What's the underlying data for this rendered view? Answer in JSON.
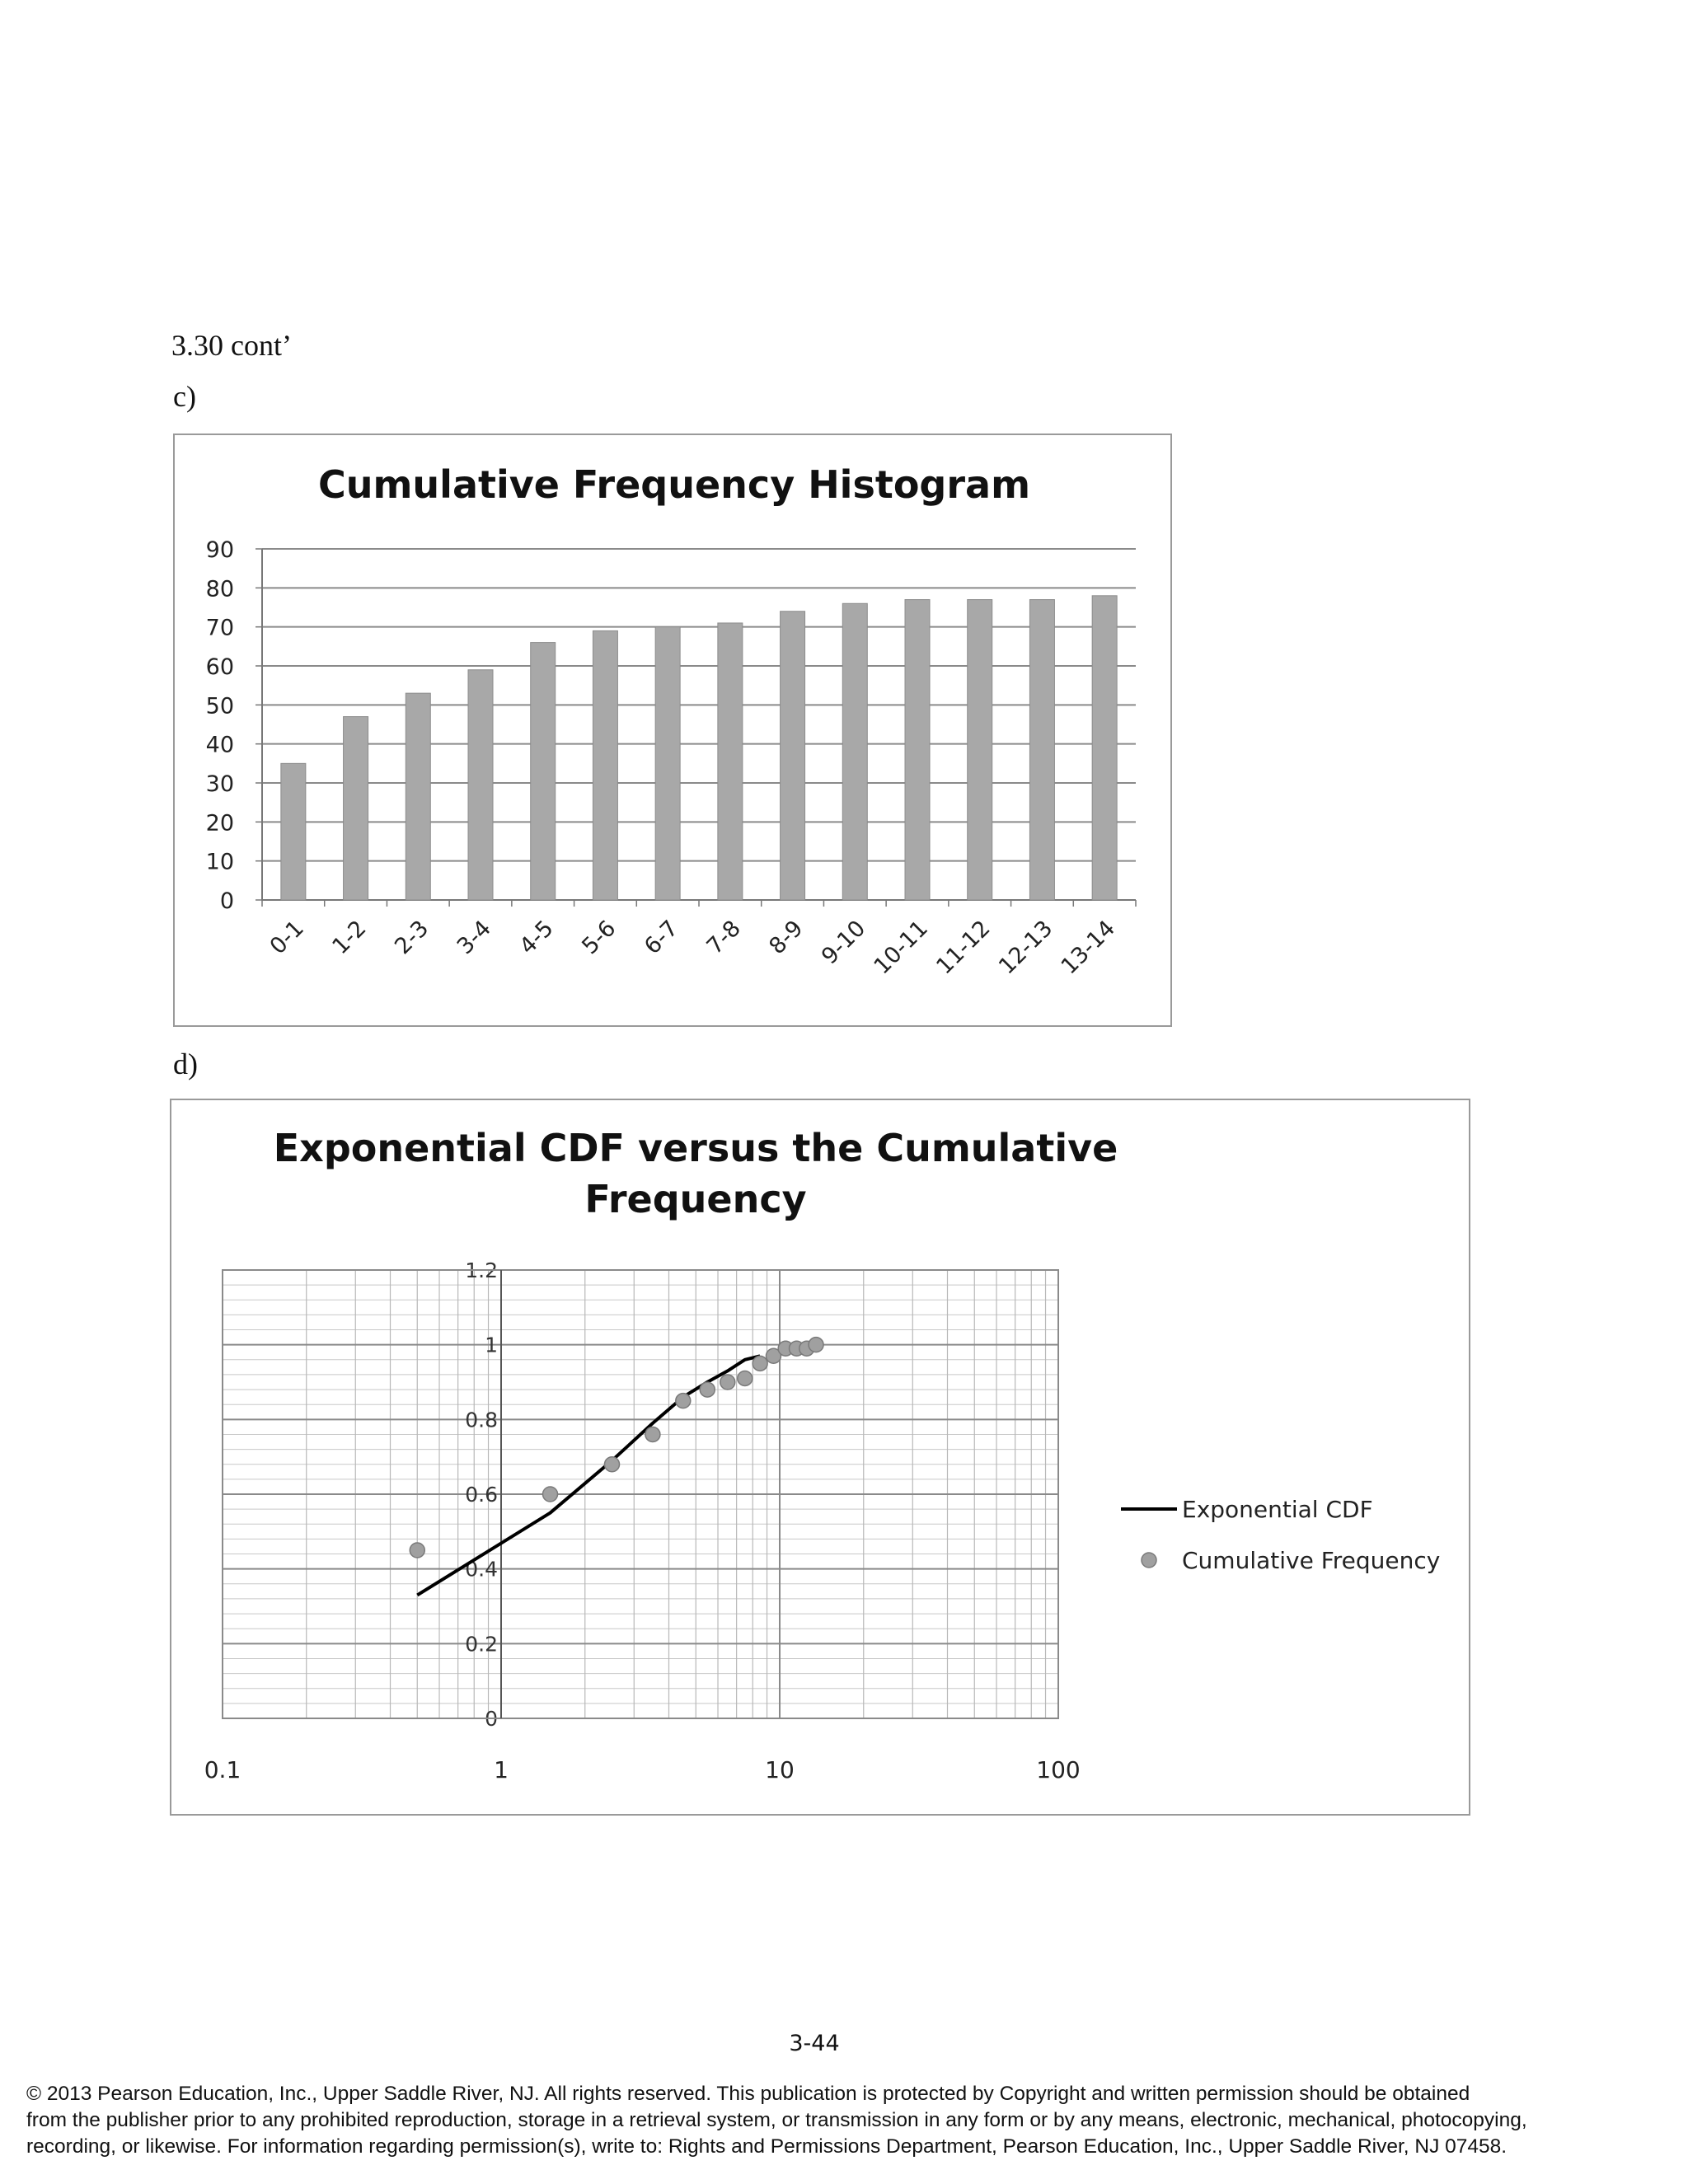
{
  "page": {
    "heading": "3.30 cont’",
    "part_c_label": "c)",
    "part_d_label": "d)",
    "page_number": "3-44",
    "copyright": [
      "© 2013 Pearson Education, Inc., Upper Saddle River, NJ. All rights reserved. This publication is protected by Copyright and written permission should be obtained",
      "from the publisher prior to any prohibited reproduction, storage in a retrieval system, or transmission in any form or by any means, electronic, mechanical, photocopying,",
      "recording, or likewise. For information regarding permission(s), write to: Rights and Permissions Department, Pearson Education, Inc., Upper Saddle River, NJ 07458."
    ]
  },
  "chart_data": [
    {
      "type": "bar",
      "title": "Cumulative Frequency Histogram",
      "categories": [
        "0-1",
        "1-2",
        "2-3",
        "3-4",
        "4-5",
        "5-6",
        "6-7",
        "7-8",
        "8-9",
        "9-10",
        "10-11",
        "11-12",
        "12-13",
        "13-14"
      ],
      "values": [
        35,
        47,
        53,
        59,
        66,
        69,
        70,
        71,
        74,
        76,
        77,
        77,
        77,
        78
      ],
      "ylim": [
        0,
        90
      ],
      "yticks": [
        "0",
        "10",
        "20",
        "30",
        "40",
        "50",
        "60",
        "70",
        "80",
        "90"
      ],
      "bar_color": "#a8a8a8",
      "grid": true
    },
    {
      "type": "scatter",
      "title_lines": [
        "Exponential CDF versus the Cumulative",
        "Frequency"
      ],
      "x_scale": "log",
      "xlim": [
        0.1,
        100
      ],
      "ylim": [
        0,
        1.2
      ],
      "xticks": [
        "0.1",
        "1",
        "10",
        "100"
      ],
      "yticks": [
        "0",
        "0.2",
        "0.4",
        "0.6",
        "0.8",
        "1",
        "1.2"
      ],
      "grid": true,
      "legend_position": "right",
      "series": [
        {
          "name": "Exponential CDF",
          "kind": "line",
          "color": "#000000",
          "x": [
            0.5,
            1.5,
            2.5,
            3.5,
            4.5,
            5.5,
            6.5,
            7.5,
            8.5
          ],
          "y": [
            0.33,
            0.55,
            0.69,
            0.79,
            0.86,
            0.9,
            0.93,
            0.96,
            0.97
          ]
        },
        {
          "name": "Cumulative Frequency",
          "kind": "scatter",
          "color": "#a0a0a0",
          "x": [
            0.5,
            1.5,
            2.5,
            3.5,
            4.5,
            5.5,
            6.5,
            7.5,
            8.5,
            9.5,
            10.5,
            11.5,
            12.5,
            13.5
          ],
          "y": [
            0.45,
            0.6,
            0.68,
            0.76,
            0.85,
            0.88,
            0.9,
            0.91,
            0.95,
            0.97,
            0.99,
            0.99,
            0.99,
            1.0
          ]
        }
      ]
    }
  ]
}
